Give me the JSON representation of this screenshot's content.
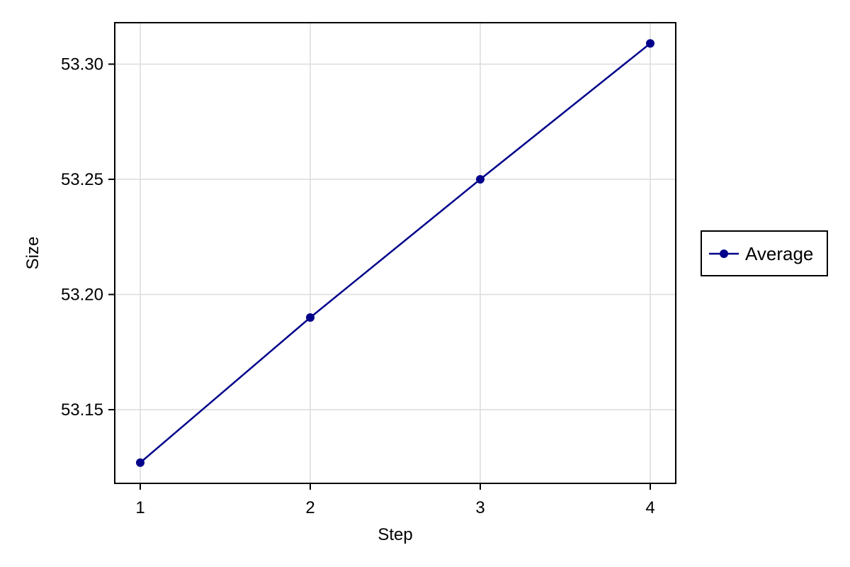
{
  "chart_data": {
    "type": "line",
    "title": "",
    "xlabel": "Step",
    "ylabel": "Size",
    "x": [
      1,
      2,
      3,
      4
    ],
    "xticks": [
      "1",
      "2",
      "3",
      "4"
    ],
    "yticks": [
      53.15,
      53.2,
      53.25,
      53.3
    ],
    "yticklabels": [
      "53.15",
      "53.20",
      "53.25",
      "53.30"
    ],
    "xlim": [
      0.85,
      4.15
    ],
    "ylim": [
      53.118,
      53.318
    ],
    "grid": true,
    "legend_position": "right",
    "series": [
      {
        "name": "Average",
        "color": "#00008b",
        "marker": "circle",
        "values": [
          53.127,
          53.19,
          53.25,
          53.309
        ]
      }
    ]
  }
}
